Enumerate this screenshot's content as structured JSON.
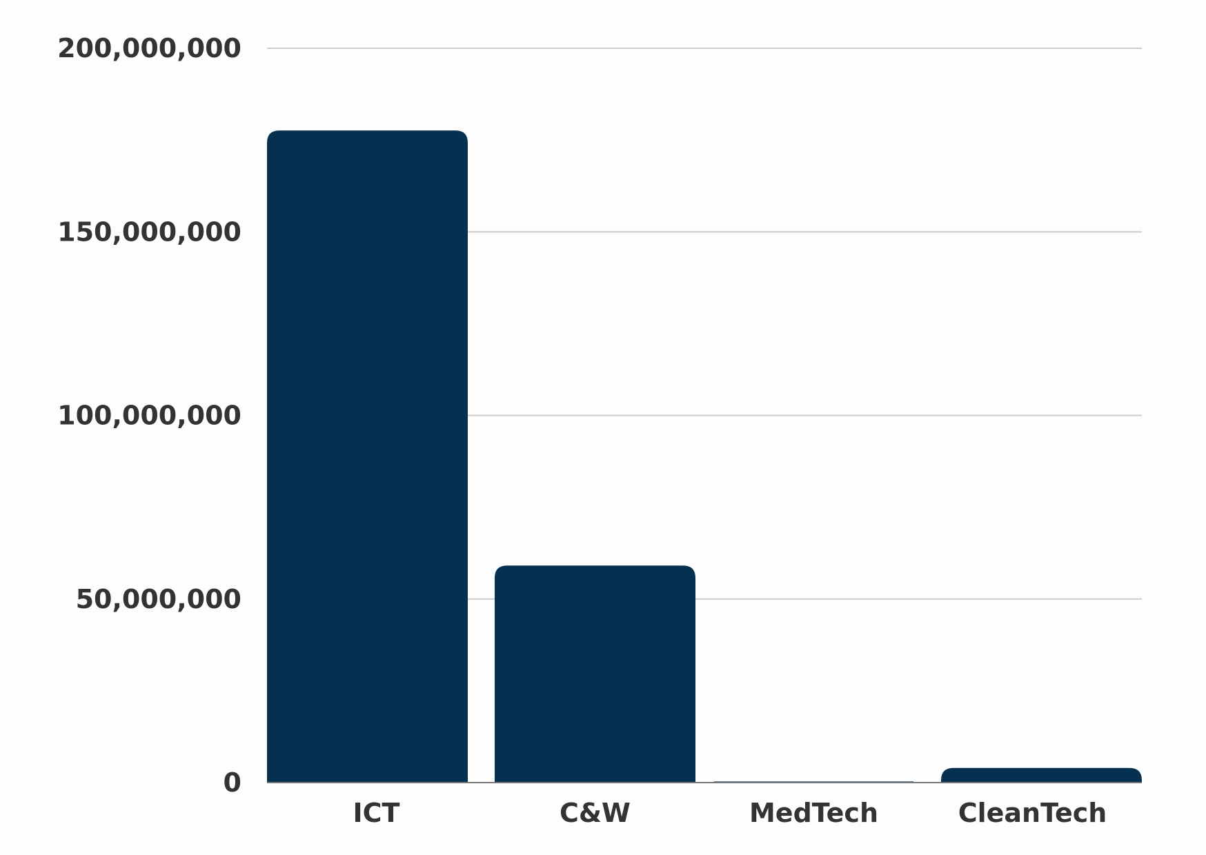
{
  "chart_data": {
    "type": "bar",
    "title": "",
    "xlabel": "",
    "ylabel": "",
    "categories": [
      "ICT",
      "C&W",
      "MedTech",
      "CleanTech"
    ],
    "values": [
      177600000,
      59100000,
      300000,
      4000000
    ],
    "ylim": [
      0,
      200000000
    ],
    "yticks": [
      0,
      50000000,
      100000000,
      150000000,
      200000000
    ],
    "ytick_labels": [
      "0",
      "50,000,000",
      "100,000,000",
      "150,000,000",
      "200,000,000"
    ],
    "grid": true,
    "legend": "none",
    "colors": {
      "bar": "#06304f",
      "grid": "#cccccc",
      "text": "#333333"
    }
  }
}
